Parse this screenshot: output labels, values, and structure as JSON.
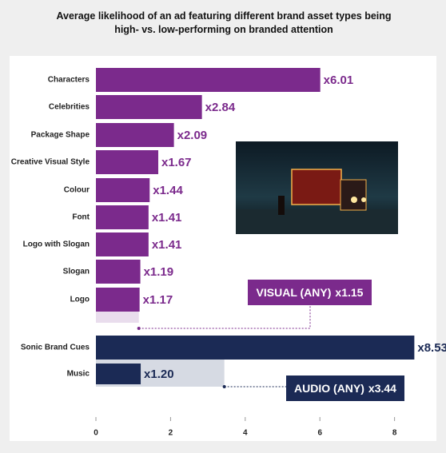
{
  "chart_data": {
    "type": "bar",
    "orientation": "horizontal",
    "title": "Average likelihood of an ad featuring different brand asset types being high- vs. low-performing on branded attention",
    "categories": [
      "Characters",
      "Celebrities",
      "Package Shape",
      "Creative Visual Style",
      "Colour",
      "Font",
      "Logo with Slogan",
      "Slogan",
      "Logo",
      "Sonic Brand Cues",
      "Music"
    ],
    "values": [
      6.01,
      2.84,
      2.09,
      1.67,
      1.44,
      1.41,
      1.41,
      1.19,
      1.17,
      8.53,
      1.2
    ],
    "value_labels": [
      "x6.01",
      "x2.84",
      "x2.09",
      "x1.67",
      "x1.44",
      "x1.41",
      "x1.41",
      "x1.19",
      "x1.17",
      "x8.53",
      "x1.20"
    ],
    "colors": [
      "#7b2a8c",
      "#7b2a8c",
      "#7b2a8c",
      "#7b2a8c",
      "#7b2a8c",
      "#7b2a8c",
      "#7b2a8c",
      "#7b2a8c",
      "#7b2a8c",
      "#1b2a55",
      "#1b2a55"
    ],
    "aggregates": [
      {
        "name": "VISUAL (ANY)",
        "value": 1.15,
        "value_label": "x1.15",
        "color": "#7b2a8c",
        "bar_color": "#e9dded"
      },
      {
        "name": "AUDIO (ANY)",
        "value": 3.44,
        "value_label": "x3.44",
        "color": "#1b2a55",
        "bar_color": "#d6dae3"
      }
    ],
    "xlim": [
      0,
      9.1
    ],
    "xticks": [
      0,
      2,
      4,
      6,
      8
    ],
    "grid": false
  }
}
